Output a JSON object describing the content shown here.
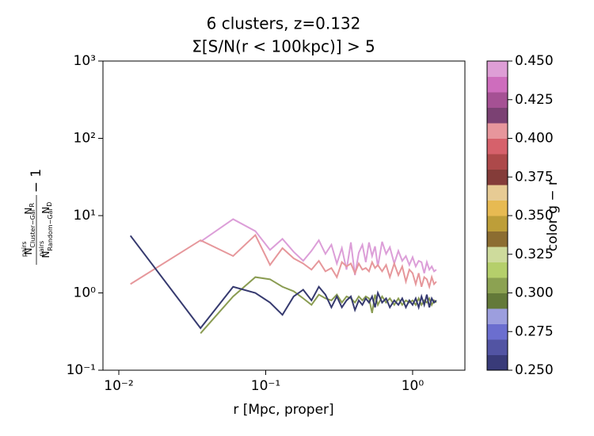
{
  "chart_data": {
    "type": "line",
    "title": [
      "6 clusters, z=0.132",
      "Σ[S/N(r < 100kpc)] > 5"
    ],
    "xlabel": "r [Mpc, proper]",
    "ylabel": {
      "num_n": "N",
      "num_sup": "pairs",
      "num_sub": "Cluster−Gal",
      "num_r": "N",
      "num_r_sub": "R",
      "den_n": "N",
      "den_sup": "pairs",
      "den_sub": "Random−Gal",
      "den_d": "N",
      "den_d_sub": "D",
      "tail": "− 1"
    },
    "xscale": "log",
    "yscale": "log",
    "xlim": [
      0.0078,
      2.27
    ],
    "ylim": [
      0.1,
      1000
    ],
    "xticks": [
      {
        "value": 0.01,
        "label": "10⁻²"
      },
      {
        "value": 0.1,
        "label": "10⁻¹"
      },
      {
        "value": 1,
        "label": "10⁰"
      }
    ],
    "yticks": [
      {
        "value": 0.1,
        "label": "10⁻¹"
      },
      {
        "value": 1,
        "label": "10⁰"
      },
      {
        "value": 10,
        "label": "10¹"
      },
      {
        "value": 100,
        "label": "10²"
      },
      {
        "value": 1000,
        "label": "10³"
      }
    ],
    "x": [
      0.012,
      0.036,
      0.06,
      0.085,
      0.107,
      0.13,
      0.155,
      0.18,
      0.205,
      0.23,
      0.255,
      0.28,
      0.305,
      0.33,
      0.355,
      0.38,
      0.405,
      0.43,
      0.455,
      0.48,
      0.505,
      0.53,
      0.555,
      0.58,
      0.62,
      0.66,
      0.7,
      0.75,
      0.8,
      0.85,
      0.9,
      0.95,
      1.0,
      1.05,
      1.1,
      1.15,
      1.2,
      1.25,
      1.3,
      1.35,
      1.4,
      1.45
    ],
    "series": [
      {
        "color": "#dc9ed8",
        "values": [
          null,
          4.6,
          9.0,
          6.3,
          3.6,
          5.0,
          3.4,
          2.6,
          3.5,
          4.8,
          3.2,
          4.2,
          2.4,
          3.8,
          2.0,
          4.5,
          1.7,
          3.3,
          4.2,
          2.5,
          4.5,
          3.0,
          4.0,
          2.2,
          4.6,
          3.2,
          3.9,
          2.4,
          3.5,
          2.6,
          3.0,
          2.3,
          2.9,
          2.2,
          2.6,
          2.5,
          1.8,
          2.5,
          2.0,
          2.2,
          1.9,
          2.0
        ]
      },
      {
        "color": "#e6979b",
        "values": [
          1.3,
          4.8,
          3.0,
          5.6,
          2.3,
          3.8,
          2.8,
          2.4,
          2.0,
          2.6,
          1.9,
          2.1,
          1.6,
          2.5,
          2.2,
          2.4,
          1.8,
          2.4,
          2.0,
          2.1,
          1.9,
          2.5,
          2.1,
          2.3,
          1.9,
          2.3,
          1.6,
          2.4,
          1.7,
          2.2,
          1.4,
          2.0,
          1.8,
          1.3,
          1.8,
          1.2,
          1.6,
          1.5,
          1.2,
          1.6,
          1.3,
          1.4
        ]
      },
      {
        "color": "#8a9c52",
        "values": [
          null,
          0.3,
          0.9,
          1.6,
          1.5,
          1.2,
          1.05,
          0.85,
          0.7,
          0.95,
          0.85,
          0.8,
          0.95,
          0.75,
          0.9,
          0.85,
          0.75,
          0.9,
          0.8,
          0.9,
          0.85,
          0.55,
          0.95,
          0.7,
          0.9,
          0.75,
          0.85,
          0.7,
          0.85,
          0.7,
          0.8,
          0.75,
          0.8,
          0.7,
          0.85,
          0.7,
          0.8,
          0.75,
          0.85,
          0.7,
          0.8,
          0.75
        ]
      },
      {
        "color": "#363a6f",
        "values": [
          5.5,
          0.35,
          1.2,
          1.0,
          0.75,
          0.52,
          0.9,
          1.1,
          0.8,
          1.2,
          0.95,
          0.65,
          0.9,
          0.65,
          0.8,
          0.9,
          0.6,
          0.8,
          0.7,
          0.85,
          0.75,
          0.9,
          0.65,
          1.0,
          0.75,
          0.85,
          0.65,
          0.8,
          0.7,
          0.85,
          0.65,
          0.8,
          0.7,
          0.85,
          0.65,
          0.9,
          0.7,
          0.95,
          0.65,
          0.85,
          0.75,
          0.8
        ]
      }
    ],
    "colorbar": {
      "label": "color g − r",
      "lim": [
        0.25,
        0.45
      ],
      "ticks": [
        {
          "value": 0.25,
          "label": "0.250"
        },
        0.275,
        {
          "value": 0.3,
          "label": "0.300"
        },
        0.325,
        {
          "value": 0.35,
          "label": "0.350"
        },
        0.375,
        {
          "value": 0.4,
          "label": "0.400"
        },
        0.425,
        {
          "value": 0.45,
          "label": "0.450"
        }
      ],
      "colors": [
        "#393b79",
        "#5254a3",
        "#6b6ecf",
        "#9c9ede",
        "#637939",
        "#8ca252",
        "#b5cf6b",
        "#cedb9c",
        "#8c6d31",
        "#bd9e39",
        "#e7ba52",
        "#e7cb94",
        "#843c39",
        "#ad494a",
        "#d6616b",
        "#e7969c",
        "#7b4173",
        "#a55194",
        "#ce6dbd",
        "#de9ed6"
      ]
    }
  }
}
